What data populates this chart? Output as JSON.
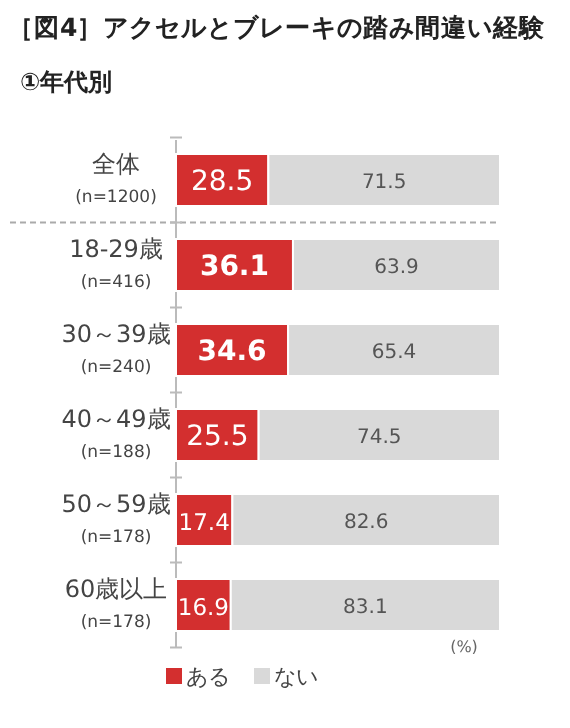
{
  "chart_data": {
    "type": "bar",
    "orientation": "horizontal",
    "stacked": true,
    "title": "［図4］アクセルとブレーキの踏み間違い経験",
    "subtitle": "①年代別",
    "categories": [
      "全体\n(n=1200)",
      "18-29歳\n(n=416)",
      "30～39歳\n(n=240)",
      "40～49歳\n(n=188)",
      "50～59歳\n(n=178)",
      "60歳以上\n(n=178)"
    ],
    "series": [
      {
        "name": "ある",
        "color": "#d32f2f",
        "values": [
          28.5,
          36.1,
          34.6,
          25.5,
          17.4,
          16.9
        ]
      },
      {
        "name": "ない",
        "color": "#d9d9d9",
        "values": [
          71.5,
          63.9,
          65.4,
          74.5,
          82.6,
          83.1
        ]
      }
    ],
    "xlim": [
      0,
      100
    ],
    "data_labels": true,
    "legend": "bottom",
    "annotations": [
      "(%)"
    ]
  }
}
